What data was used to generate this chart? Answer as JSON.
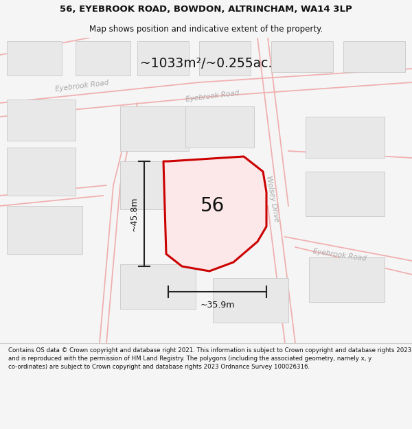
{
  "title_line1": "56, EYEBROOK ROAD, BOWDON, ALTRINCHAM, WA14 3LP",
  "title_line2": "Map shows position and indicative extent of the property.",
  "area_text": "~1033m²/~0.255ac.",
  "number_text": "56",
  "dim_vertical": "~45.8m",
  "dim_horizontal": "~35.9m",
  "road_label_nw": "Eyebrook Road",
  "road_label_center": "Eyebrook Road",
  "road_label_se": "Eyebrook Road",
  "road_label_wolsey": "Wolsey Drive",
  "footer_text": "Contains OS data © Crown copyright and database right 2021. This information is subject to Crown copyright and database rights 2023 and is reproduced with the permission of HM Land Registry. The polygons (including the associated geometry, namely x, y co-ordinates) are subject to Crown copyright and database rights 2023 Ordnance Survey 100026316.",
  "bg_color": "#f5f5f5",
  "map_bg": "#ffffff",
  "road_line_color": "#f0b0b0",
  "building_fill": "#e8e8e8",
  "building_edge": "#c8c8c8",
  "highlight_color": "#cc0000",
  "highlight_fill": "#fce8e8",
  "dim_line_color": "#222222",
  "road_text_color": "#aaaaaa",
  "title_color": "#111111",
  "footer_color": "#111111",
  "area_text_color": "#111111"
}
